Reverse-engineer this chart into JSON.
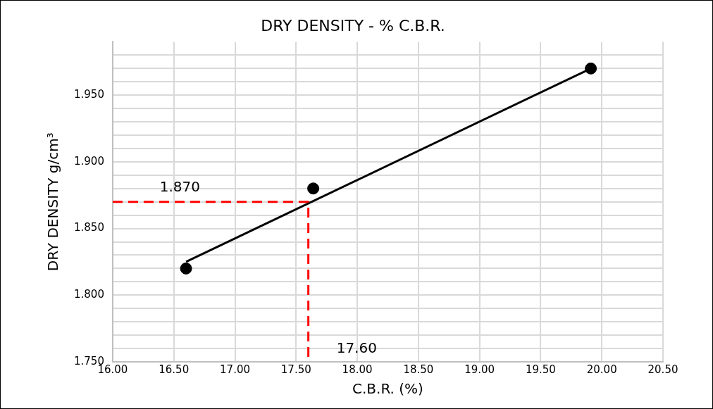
{
  "chart_data": {
    "type": "scatter",
    "title": "DRY DENSITY - % C.B.R.",
    "xlabel": "C.B.R. (%)",
    "ylabel": "DRY DENSITY g/cm³",
    "xlim": [
      16,
      20.5
    ],
    "xticks": [
      {
        "value": 16,
        "label": "16.00"
      },
      {
        "value": 16.5,
        "label": "16.50"
      },
      {
        "value": 17,
        "label": "17.00"
      },
      {
        "value": 17.5,
        "label": "17.50"
      },
      {
        "value": 18,
        "label": "18.00"
      },
      {
        "value": 18.5,
        "label": "18.50"
      },
      {
        "value": 19,
        "label": "19.00"
      },
      {
        "value": 19.5,
        "label": "19.50"
      },
      {
        "value": 20,
        "label": "20.00"
      },
      {
        "value": 20.5,
        "label": "20.50"
      }
    ],
    "ylim": [
      1.75,
      1.99
    ],
    "yticks": [
      {
        "value": 1.75,
        "label": "1.750"
      },
      {
        "value": 1.76,
        "label": null
      },
      {
        "value": 1.77,
        "label": null
      },
      {
        "value": 1.78,
        "label": null
      },
      {
        "value": 1.79,
        "label": null
      },
      {
        "value": 1.8,
        "label": "1.800"
      },
      {
        "value": 1.81,
        "label": null
      },
      {
        "value": 1.82,
        "label": null
      },
      {
        "value": 1.83,
        "label": null
      },
      {
        "value": 1.84,
        "label": null
      },
      {
        "value": 1.85,
        "label": "1.850"
      },
      {
        "value": 1.86,
        "label": null
      },
      {
        "value": 1.87,
        "label": null
      },
      {
        "value": 1.88,
        "label": null
      },
      {
        "value": 1.89,
        "label": null
      },
      {
        "value": 1.9,
        "label": "1.900"
      },
      {
        "value": 1.91,
        "label": null
      },
      {
        "value": 1.92,
        "label": null
      },
      {
        "value": 1.93,
        "label": null
      },
      {
        "value": 1.94,
        "label": null
      },
      {
        "value": 1.95,
        "label": "1.950"
      },
      {
        "value": 1.96,
        "label": null
      },
      {
        "value": 1.97,
        "label": null
      },
      {
        "value": 1.98,
        "label": null
      }
    ],
    "grid": true,
    "series": [
      {
        "color": "#000000",
        "marker": "circle",
        "x": [
          16.6,
          17.64,
          19.91
        ],
        "values": [
          1.82,
          1.88,
          1.97
        ]
      },
      {
        "type": "line",
        "marker": "none",
        "color": "#000000",
        "x": [
          16.6,
          19.91
        ],
        "values": [
          1.825,
          1.97
        ]
      },
      {
        "type": "line",
        "marker": "none",
        "color": "#ff0000",
        "line_style": "dashed",
        "x": [
          16,
          17.6,
          17.6
        ],
        "values": [
          1.87,
          1.87,
          1.75
        ]
      }
    ],
    "annotations": [
      {
        "text": "1.870",
        "x": 16.55,
        "y": 1.87
      },
      {
        "text": "17.60",
        "x": 17.6,
        "y": 1.75
      }
    ]
  }
}
